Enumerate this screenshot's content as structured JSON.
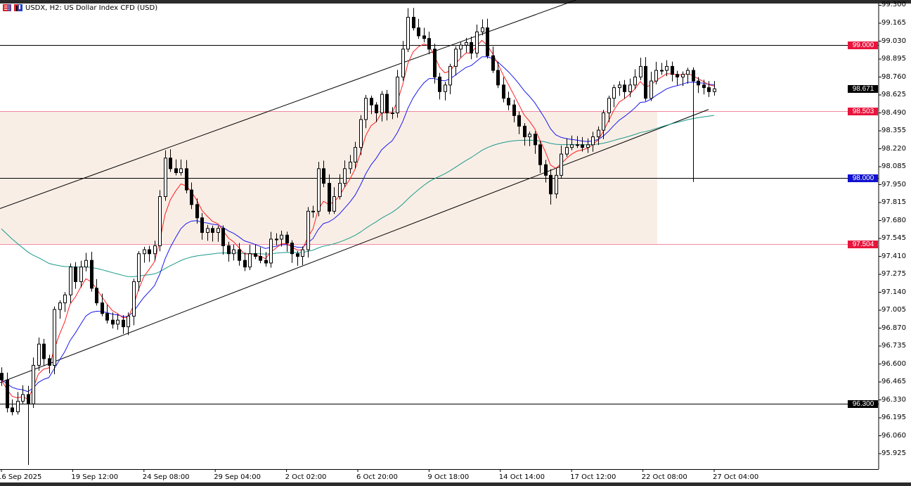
{
  "header": {
    "title": "USDX, H2:  US Dollar Index CFD (USD)"
  },
  "colors": {
    "fast_ma": "#ff2020",
    "mid_ma": "#1a1aee",
    "slow_ma": "#1a9a8a",
    "zone": "#f9eee6",
    "level_red": "#e8143c",
    "level_blue": "#1010d0",
    "level_black": "#000000"
  },
  "icons": [
    "bars-icon",
    "chart-type-icon"
  ],
  "chart_data": {
    "type": "candlestick",
    "symbol": "USDX",
    "timeframe": "H2",
    "y_ticks": [
      "99.300",
      "99.165",
      "99.030",
      "98.895",
      "98.760",
      "98.625",
      "98.490",
      "98.355",
      "98.220",
      "98.085",
      "97.950",
      "97.815",
      "97.680",
      "97.545",
      "97.410",
      "97.275",
      "97.140",
      "97.005",
      "96.870",
      "96.735",
      "96.600",
      "96.465",
      "96.330",
      "96.195",
      "96.060",
      "95.925"
    ],
    "x_ticks": [
      "16 Sep 2025",
      "19 Sep 12:00",
      "24 Sep 08:00",
      "29 Sep 04:00",
      "2 Oct 02:00",
      "6 Oct 20:00",
      "9 Oct 18:00",
      "14 Oct 14:00",
      "17 Oct 12:00",
      "22 Oct 08:00",
      "27 Oct 04:00"
    ],
    "closes": [
      96.48,
      96.27,
      96.24,
      96.32,
      96.37,
      96.3,
      96.59,
      96.75,
      96.64,
      96.59,
      97.01,
      97.06,
      97.12,
      97.33,
      97.22,
      97.33,
      97.38,
      97.17,
      97.06,
      96.98,
      96.93,
      96.9,
      96.93,
      96.88,
      96.96,
      97.22,
      97.43,
      97.46,
      97.43,
      97.49,
      97.86,
      98.15,
      98.07,
      98.04,
      98.07,
      97.91,
      97.8,
      97.7,
      97.59,
      97.62,
      97.59,
      97.62,
      97.49,
      97.43,
      97.46,
      97.38,
      97.33,
      97.43,
      97.41,
      97.38,
      97.36,
      97.54,
      97.54,
      97.57,
      97.51,
      97.43,
      97.41,
      97.46,
      97.75,
      97.75,
      98.07,
      97.96,
      97.75,
      97.86,
      97.96,
      98.07,
      98.12,
      98.23,
      98.44,
      98.6,
      98.55,
      98.49,
      98.63,
      98.49,
      98.49,
      98.76,
      98.97,
      99.21,
      99.13,
      99.07,
      99.05,
      98.97,
      98.76,
      98.65,
      98.7,
      98.84,
      98.97,
      99.0,
      99.02,
      98.94,
      99.1,
      99.13,
      98.92,
      98.81,
      98.7,
      98.6,
      98.55,
      98.47,
      98.39,
      98.31,
      98.33,
      98.25,
      98.1,
      98.02,
      97.88,
      98.02,
      98.18,
      98.23,
      98.25,
      98.25,
      98.23,
      98.25,
      98.31,
      98.36,
      98.49,
      98.6,
      98.68,
      98.7,
      98.65,
      98.7,
      98.76,
      98.84,
      98.6,
      98.73,
      98.81,
      98.81,
      98.84,
      98.78,
      98.76,
      98.78,
      98.81,
      98.73,
      98.7,
      98.68,
      98.65,
      98.671
    ],
    "extreme_lows": [
      {
        "bar": 5,
        "price": 95.84
      },
      {
        "bar": 104,
        "price": 97.8
      },
      {
        "bar": 131,
        "price": 97.97
      }
    ],
    "levels": [
      {
        "price": "99.000",
        "line": "#000000",
        "label_bg": "#e8143c"
      },
      {
        "price": "98.503",
        "line": "#f08aa0",
        "label_bg": "#e8143c"
      },
      {
        "price": "98.000",
        "line": "#000000",
        "label_bg": "#1010d0"
      },
      {
        "price": "97.504",
        "line": "#f08aa0",
        "label_bg": "#e8143c"
      },
      {
        "price": "96.300",
        "line": "#000000",
        "label_bg": "#000000"
      }
    ],
    "current_price": "98.671",
    "zone": {
      "from": 97.504,
      "to": 98.503
    },
    "channel": {
      "upper": [
        [
          0,
          97.77
        ],
        [
          830,
          99.36
        ]
      ],
      "lower": [
        [
          0,
          96.46
        ],
        [
          1008,
          98.516
        ]
      ]
    },
    "ylim": [
      95.84,
      99.33
    ]
  }
}
